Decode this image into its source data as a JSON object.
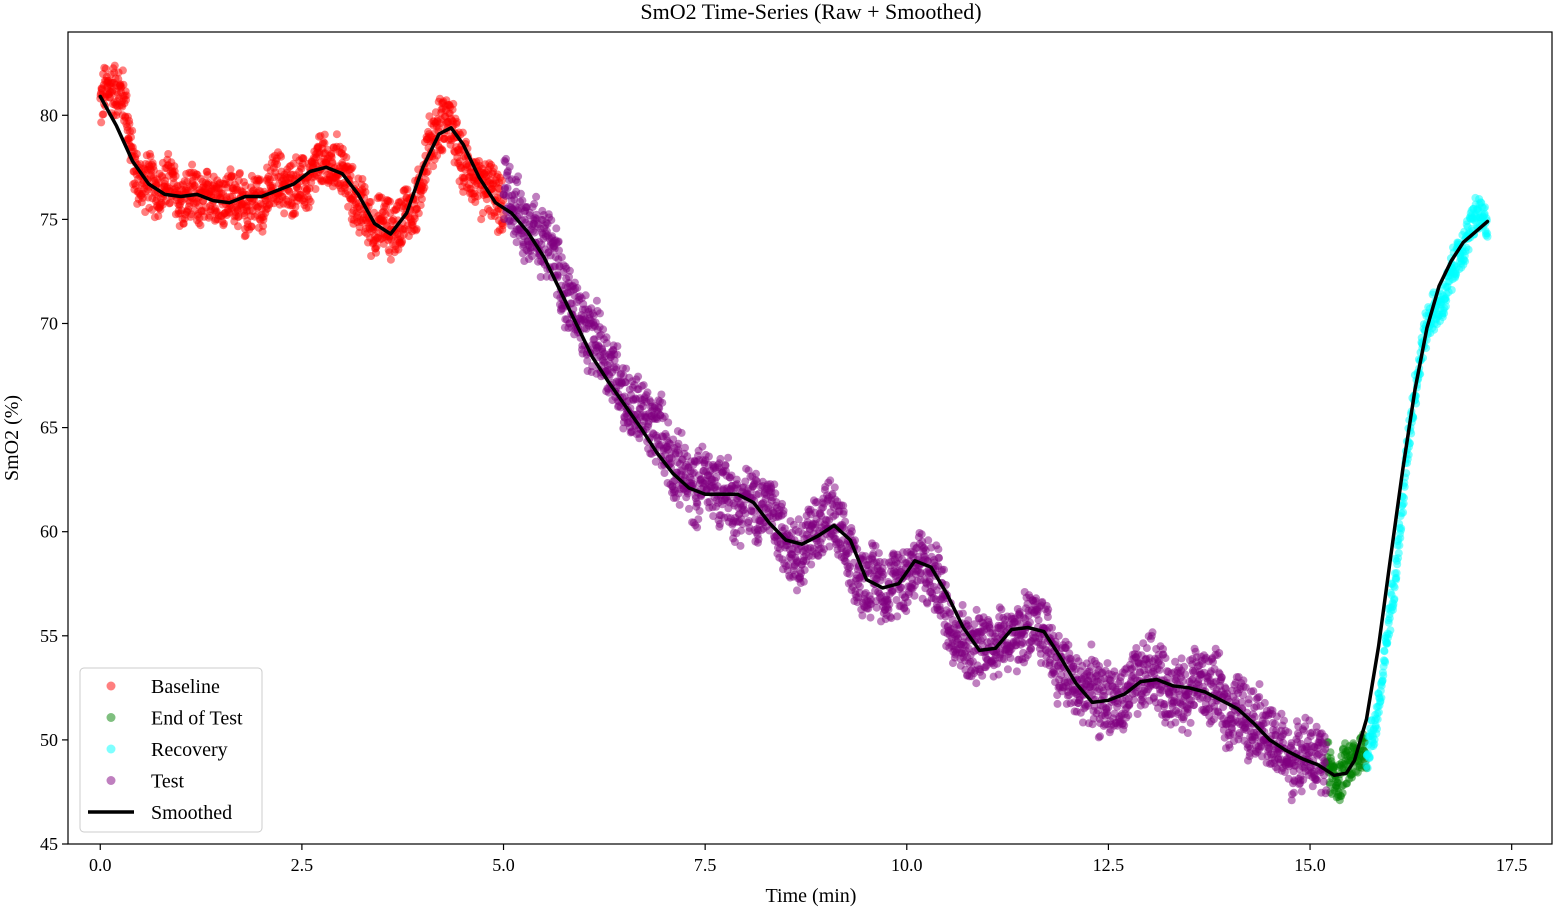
{
  "chart_data": {
    "type": "scatter",
    "title": "SmO2 Time-Series (Raw + Smoothed)",
    "xlabel": "Time (min)",
    "ylabel": "SmO2 (%)",
    "xlim": [
      -0.4,
      18.0
    ],
    "ylim": [
      45,
      84
    ],
    "xticks": [
      0.0,
      2.5,
      5.0,
      7.5,
      10.0,
      12.5,
      15.0,
      17.5
    ],
    "xtick_labels": [
      "0.0",
      "2.5",
      "5.0",
      "7.5",
      "10.0",
      "12.5",
      "15.0",
      "17.5"
    ],
    "yticks": [
      45,
      50,
      55,
      60,
      65,
      70,
      75,
      80
    ],
    "ytick_labels": [
      "45",
      "50",
      "55",
      "60",
      "65",
      "70",
      "75",
      "80"
    ],
    "grid": false,
    "legend_position": "lower-left",
    "series": [
      {
        "name": "Baseline",
        "kind": "scatter",
        "color": "#ff0000",
        "alpha": 0.5,
        "x": [
          0.0,
          0.1,
          0.2,
          0.3,
          0.4,
          0.5,
          0.6,
          0.7,
          0.8,
          0.9,
          1.0,
          1.1,
          1.2,
          1.3,
          1.4,
          1.5,
          1.6,
          1.7,
          1.8,
          1.9,
          2.0,
          2.1,
          2.2,
          2.3,
          2.4,
          2.5,
          2.6,
          2.7,
          2.8,
          2.9,
          3.0,
          3.1,
          3.2,
          3.3,
          3.4,
          3.5,
          3.6,
          3.7,
          3.8,
          3.9,
          4.0,
          4.1,
          4.2,
          4.3,
          4.4,
          4.5,
          4.6,
          4.7,
          4.8,
          4.9,
          5.0
        ],
        "y": [
          80.5,
          80.8,
          81.2,
          80.5,
          78.0,
          77.2,
          76.8,
          76.5,
          76.3,
          76.2,
          76.0,
          76.1,
          76.3,
          76.2,
          76.0,
          75.8,
          75.8,
          75.9,
          76.0,
          76.1,
          76.0,
          76.2,
          76.4,
          76.5,
          76.6,
          76.9,
          77.3,
          77.5,
          77.4,
          77.3,
          77.2,
          76.8,
          76.0,
          75.3,
          74.7,
          74.3,
          74.3,
          74.8,
          75.5,
          76.0,
          77.3,
          78.6,
          79.3,
          79.4,
          79.0,
          78.0,
          77.3,
          76.8,
          76.2,
          75.7,
          75.4
        ],
        "spread": 1.6
      },
      {
        "name": "End of Test",
        "kind": "scatter",
        "color": "#008000",
        "alpha": 0.5,
        "x": [
          15.2,
          15.25,
          15.3,
          15.35,
          15.4,
          15.45,
          15.5,
          15.55,
          15.6,
          15.65,
          15.7
        ],
        "y": [
          48.8,
          48.7,
          48.6,
          48.5,
          48.6,
          48.8,
          49.0,
          49.2,
          49.3,
          49.2,
          49.0
        ],
        "spread": 1.3
      },
      {
        "name": "Recovery",
        "kind": "scatter",
        "color": "#00ffff",
        "alpha": 0.5,
        "x": [
          15.7,
          15.8,
          15.9,
          16.0,
          16.1,
          16.2,
          16.3,
          16.4,
          16.5,
          16.6,
          16.7,
          16.8,
          16.9,
          17.0,
          17.1,
          17.2
        ],
        "y": [
          48.5,
          50.5,
          53.0,
          56.5,
          60.0,
          63.5,
          66.5,
          69.0,
          70.0,
          71.0,
          72.0,
          73.0,
          73.8,
          74.3,
          74.8,
          75.0
        ],
        "spread": 1.1
      },
      {
        "name": "Test",
        "kind": "scatter",
        "color": "#800080",
        "alpha": 0.5,
        "x": [
          5.0,
          5.2,
          5.4,
          5.6,
          5.8,
          6.0,
          6.2,
          6.4,
          6.6,
          6.8,
          7.0,
          7.2,
          7.4,
          7.6,
          7.8,
          8.0,
          8.2,
          8.4,
          8.6,
          8.8,
          9.0,
          9.2,
          9.4,
          9.6,
          9.8,
          10.0,
          10.2,
          10.4,
          10.6,
          10.8,
          11.0,
          11.2,
          11.4,
          11.6,
          11.8,
          12.0,
          12.2,
          12.4,
          12.6,
          12.8,
          13.0,
          13.2,
          13.4,
          13.6,
          13.8,
          14.0,
          14.2,
          14.4,
          14.6,
          14.8,
          15.0,
          15.2
        ],
        "y": [
          76.5,
          75.5,
          74.5,
          73.0,
          71.5,
          70.0,
          68.5,
          67.3,
          66.3,
          65.2,
          64.0,
          63.0,
          62.3,
          62.0,
          61.8,
          61.6,
          61.0,
          60.2,
          59.5,
          59.5,
          60.5,
          60.0,
          58.0,
          57.3,
          57.3,
          58.5,
          58.3,
          57.0,
          55.5,
          54.3,
          54.3,
          55.0,
          55.3,
          55.3,
          54.3,
          53.3,
          52.3,
          51.8,
          52.1,
          52.5,
          53.0,
          52.8,
          52.5,
          52.5,
          52.3,
          51.8,
          51.2,
          50.3,
          49.8,
          49.3,
          49.0,
          48.6
        ],
        "spread": 2.0
      },
      {
        "name": "Smoothed",
        "kind": "line",
        "color": "#000000",
        "x": [
          0.0,
          0.2,
          0.4,
          0.6,
          0.8,
          1.0,
          1.2,
          1.4,
          1.6,
          1.8,
          2.0,
          2.2,
          2.4,
          2.6,
          2.8,
          3.0,
          3.2,
          3.4,
          3.6,
          3.8,
          4.0,
          4.2,
          4.35,
          4.5,
          4.7,
          4.9,
          5.1,
          5.3,
          5.5,
          5.7,
          5.9,
          6.1,
          6.3,
          6.5,
          6.7,
          6.9,
          7.1,
          7.3,
          7.5,
          7.7,
          7.9,
          8.1,
          8.3,
          8.5,
          8.7,
          8.9,
          9.1,
          9.3,
          9.5,
          9.7,
          9.9,
          10.1,
          10.3,
          10.5,
          10.7,
          10.9,
          11.1,
          11.3,
          11.5,
          11.7,
          11.9,
          12.1,
          12.3,
          12.5,
          12.7,
          12.9,
          13.1,
          13.3,
          13.5,
          13.7,
          13.9,
          14.1,
          14.3,
          14.5,
          14.7,
          14.9,
          15.1,
          15.3,
          15.45,
          15.55,
          15.7,
          15.85,
          16.0,
          16.15,
          16.3,
          16.45,
          16.6,
          16.75,
          16.9,
          17.05,
          17.2
        ],
        "y": [
          80.9,
          79.5,
          77.8,
          76.7,
          76.2,
          76.1,
          76.2,
          75.9,
          75.8,
          76.1,
          76.1,
          76.4,
          76.7,
          77.3,
          77.5,
          77.2,
          76.2,
          74.8,
          74.3,
          75.3,
          77.5,
          79.1,
          79.4,
          78.6,
          77.0,
          75.8,
          75.3,
          74.4,
          73.2,
          71.6,
          70.0,
          68.4,
          67.2,
          66.1,
          65.0,
          63.8,
          62.8,
          62.1,
          61.8,
          61.8,
          61.8,
          61.4,
          60.4,
          59.6,
          59.4,
          59.8,
          60.3,
          59.6,
          57.7,
          57.3,
          57.5,
          58.6,
          58.3,
          57.0,
          55.4,
          54.3,
          54.4,
          55.3,
          55.4,
          55.2,
          54.0,
          52.7,
          51.8,
          51.9,
          52.2,
          52.8,
          52.9,
          52.6,
          52.5,
          52.3,
          51.9,
          51.5,
          50.8,
          50.0,
          49.5,
          49.1,
          48.8,
          48.3,
          48.4,
          49.0,
          51.0,
          54.5,
          58.8,
          63.0,
          66.8,
          69.8,
          71.8,
          73.0,
          73.9,
          74.4,
          74.9
        ]
      }
    ],
    "legend": [
      {
        "label": "Baseline",
        "marker": "dot",
        "color": "#ff0000"
      },
      {
        "label": "End of Test",
        "marker": "dot",
        "color": "#008000"
      },
      {
        "label": "Recovery",
        "marker": "dot",
        "color": "#00ffff"
      },
      {
        "label": "Test",
        "marker": "dot",
        "color": "#800080"
      },
      {
        "label": "Smoothed",
        "marker": "line",
        "color": "#000000"
      }
    ]
  }
}
